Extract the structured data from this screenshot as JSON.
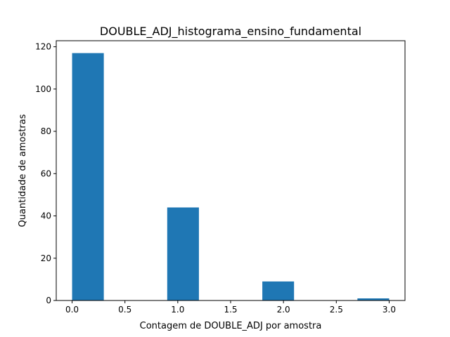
{
  "chart_data": {
    "type": "bar",
    "title": "DOUBLE_ADJ_histograma_ensino_fundamental",
    "xlabel": "Contagem de DOUBLE_ADJ por amostra",
    "ylabel": "Quantidade de amostras",
    "bins": [
      {
        "start": 0.0,
        "end": 0.3,
        "value": 117
      },
      {
        "start": 0.3,
        "end": 0.6,
        "value": 0
      },
      {
        "start": 0.6,
        "end": 0.9,
        "value": 0
      },
      {
        "start": 0.9,
        "end": 1.2,
        "value": 44
      },
      {
        "start": 1.2,
        "end": 1.5,
        "value": 0
      },
      {
        "start": 1.5,
        "end": 1.8,
        "value": 0
      },
      {
        "start": 1.8,
        "end": 2.1,
        "value": 9
      },
      {
        "start": 2.1,
        "end": 2.4,
        "value": 0
      },
      {
        "start": 2.4,
        "end": 2.7,
        "value": 0
      },
      {
        "start": 2.7,
        "end": 3.0,
        "value": 1
      }
    ],
    "xlim": [
      -0.15,
      3.15
    ],
    "ylim": [
      0,
      122.85
    ],
    "xticks": [
      0.0,
      0.5,
      1.0,
      1.5,
      2.0,
      2.5,
      3.0
    ],
    "xtick_labels": [
      "0.0",
      "0.5",
      "1.0",
      "1.5",
      "2.0",
      "2.5",
      "3.0"
    ],
    "yticks": [
      0,
      20,
      40,
      60,
      80,
      100,
      120
    ],
    "ytick_labels": [
      "0",
      "20",
      "40",
      "60",
      "80",
      "100",
      "120"
    ],
    "bar_color": "#1f77b4",
    "grid": false,
    "legend": "none"
  }
}
